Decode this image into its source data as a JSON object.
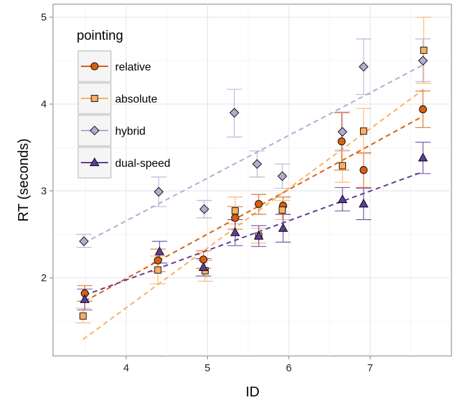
{
  "chart_data": {
    "type": "scatter",
    "xlabel": "ID",
    "ylabel": "RT (seconds)",
    "xlim": [
      3.1,
      8.0
    ],
    "ylim": [
      1.1,
      5.15
    ],
    "x_ticks": [
      4,
      5,
      6,
      7
    ],
    "y_ticks": [
      2,
      3,
      4,
      5
    ],
    "x_tick_labels": [
      "4",
      "5",
      "6",
      "7"
    ],
    "y_tick_labels": [
      "2",
      "3",
      "4",
      "5"
    ],
    "grid": true,
    "legend": {
      "title": "pointing",
      "position": "top-left"
    },
    "series": [
      {
        "name": "relative",
        "color": "#d95f0e",
        "marker": "circle",
        "points": [
          {
            "x": 3.49,
            "y": 1.82,
            "lo": 1.73,
            "hi": 1.91
          },
          {
            "x": 4.39,
            "y": 2.2,
            "lo": 2.07,
            "hi": 2.33
          },
          {
            "x": 4.95,
            "y": 2.21,
            "lo": 2.11,
            "hi": 2.31
          },
          {
            "x": 5.34,
            "y": 2.69,
            "lo": 2.56,
            "hi": 2.82
          },
          {
            "x": 5.63,
            "y": 2.85,
            "lo": 2.73,
            "hi": 2.96
          },
          {
            "x": 5.93,
            "y": 2.83,
            "lo": 2.73,
            "hi": 2.93
          },
          {
            "x": 6.65,
            "y": 3.57,
            "lo": 3.24,
            "hi": 3.9
          },
          {
            "x": 6.92,
            "y": 3.24,
            "lo": 3.04,
            "hi": 3.44
          },
          {
            "x": 7.65,
            "y": 3.94,
            "lo": 3.73,
            "hi": 4.15
          }
        ],
        "trend": {
          "x1": 3.49,
          "y1": 1.73,
          "x2": 7.65,
          "y2": 3.86
        }
      },
      {
        "name": "absolute",
        "color": "#fdae61",
        "marker": "square",
        "points": [
          {
            "x": 3.47,
            "y": 1.56,
            "lo": 1.48,
            "hi": 1.65
          },
          {
            "x": 4.39,
            "y": 2.09,
            "lo": 1.93,
            "hi": 2.25
          },
          {
            "x": 4.97,
            "y": 2.08,
            "lo": 1.96,
            "hi": 2.2
          },
          {
            "x": 5.34,
            "y": 2.77,
            "lo": 2.62,
            "hi": 2.93
          },
          {
            "x": 5.63,
            "y": 2.48,
            "lo": 2.4,
            "hi": 2.57
          },
          {
            "x": 5.92,
            "y": 2.78,
            "lo": 2.67,
            "hi": 2.89
          },
          {
            "x": 6.66,
            "y": 3.29,
            "lo": 3.1,
            "hi": 3.47
          },
          {
            "x": 6.92,
            "y": 3.69,
            "lo": 3.43,
            "hi": 3.95
          },
          {
            "x": 7.66,
            "y": 4.62,
            "lo": 4.24,
            "hi": 5.0
          }
        ],
        "trend": {
          "x1": 3.47,
          "y1": 1.29,
          "x2": 7.66,
          "y2": 4.17
        }
      },
      {
        "name": "hybrid",
        "color": "#b2abd2",
        "marker": "diamond",
        "points": [
          {
            "x": 3.48,
            "y": 2.42,
            "lo": 2.35,
            "hi": 2.5
          },
          {
            "x": 4.4,
            "y": 2.99,
            "lo": 2.82,
            "hi": 3.16
          },
          {
            "x": 4.96,
            "y": 2.79,
            "lo": 2.69,
            "hi": 2.89
          },
          {
            "x": 5.33,
            "y": 3.9,
            "lo": 3.62,
            "hi": 4.17
          },
          {
            "x": 5.61,
            "y": 3.31,
            "lo": 3.16,
            "hi": 3.46
          },
          {
            "x": 5.92,
            "y": 3.17,
            "lo": 3.03,
            "hi": 3.31
          },
          {
            "x": 6.66,
            "y": 3.68,
            "lo": 3.46,
            "hi": 3.91
          },
          {
            "x": 6.92,
            "y": 4.43,
            "lo": 4.11,
            "hi": 4.75
          },
          {
            "x": 7.65,
            "y": 4.5,
            "lo": 4.26,
            "hi": 4.75
          }
        ],
        "trend": {
          "x1": 3.48,
          "y1": 2.4,
          "x2": 7.65,
          "y2": 4.45
        }
      },
      {
        "name": "dual-speed",
        "color": "#5e3c99",
        "marker": "triangle",
        "points": [
          {
            "x": 3.49,
            "y": 1.75,
            "lo": 1.63,
            "hi": 1.87
          },
          {
            "x": 4.41,
            "y": 2.3,
            "lo": 2.17,
            "hi": 2.42
          },
          {
            "x": 4.95,
            "y": 2.12,
            "lo": 2.02,
            "hi": 2.22
          },
          {
            "x": 5.34,
            "y": 2.52,
            "lo": 2.37,
            "hi": 2.67
          },
          {
            "x": 5.63,
            "y": 2.48,
            "lo": 2.36,
            "hi": 2.6
          },
          {
            "x": 5.93,
            "y": 2.57,
            "lo": 2.41,
            "hi": 2.73
          },
          {
            "x": 6.66,
            "y": 2.9,
            "lo": 2.77,
            "hi": 3.04
          },
          {
            "x": 6.92,
            "y": 2.85,
            "lo": 2.67,
            "hi": 3.03
          },
          {
            "x": 7.65,
            "y": 3.38,
            "lo": 3.2,
            "hi": 3.56
          }
        ],
        "trend": {
          "x1": 3.49,
          "y1": 1.8,
          "x2": 7.65,
          "y2": 3.22
        }
      }
    ]
  }
}
